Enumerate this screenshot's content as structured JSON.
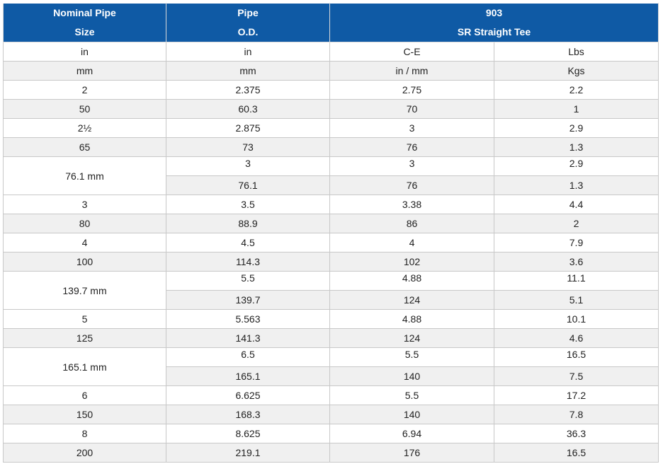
{
  "header": {
    "col1_line1": "Nominal Pipe",
    "col1_line2": "Size",
    "col2_line1": "Pipe",
    "col2_line2": "O.D.",
    "col3_line1": "903",
    "col3_line2": "SR Straight Tee"
  },
  "rows": [
    {
      "size": "in",
      "od": "in",
      "ce": "C-E",
      "wt": "Lbs"
    },
    {
      "size": "mm",
      "od": "mm",
      "ce": "in / mm",
      "wt": "Kgs"
    },
    {
      "size": "2",
      "od": "2.375",
      "ce": "2.75",
      "wt": "2.2"
    },
    {
      "size": "50",
      "od": "60.3",
      "ce": "70",
      "wt": "1"
    },
    {
      "size": "2½",
      "od": "2.875",
      "ce": "3",
      "wt": "2.9"
    },
    {
      "size": "65",
      "od": "73",
      "ce": "76",
      "wt": "1.3"
    },
    {
      "size": "76.1 mm",
      "od": "3",
      "ce": "3",
      "wt": "2.9"
    },
    {
      "od": "76.1",
      "ce": "76",
      "wt": "1.3"
    },
    {
      "size": "3",
      "od": "3.5",
      "ce": "3.38",
      "wt": "4.4"
    },
    {
      "size": "80",
      "od": "88.9",
      "ce": "86",
      "wt": "2"
    },
    {
      "size": "4",
      "od": "4.5",
      "ce": "4",
      "wt": "7.9"
    },
    {
      "size": "100",
      "od": "114.3",
      "ce": "102",
      "wt": "3.6"
    },
    {
      "size": "139.7 mm",
      "od": "5.5",
      "ce": "4.88",
      "wt": "11.1"
    },
    {
      "od": "139.7",
      "ce": "124",
      "wt": "5.1"
    },
    {
      "size": "5",
      "od": "5.563",
      "ce": "4.88",
      "wt": "10.1"
    },
    {
      "size": "125",
      "od": "141.3",
      "ce": "124",
      "wt": "4.6"
    },
    {
      "size": "165.1 mm",
      "od": "6.5",
      "ce": "5.5",
      "wt": "16.5"
    },
    {
      "od": "165.1",
      "ce": "140",
      "wt": "7.5"
    },
    {
      "size": "6",
      "od": "6.625",
      "ce": "5.5",
      "wt": "17.2"
    },
    {
      "size": "150",
      "od": "168.3",
      "ce": "140",
      "wt": "7.8"
    },
    {
      "size": "8",
      "od": "8.625",
      "ce": "6.94",
      "wt": "36.3"
    },
    {
      "size": "200",
      "od": "219.1",
      "ce": "176",
      "wt": "16.5"
    }
  ]
}
